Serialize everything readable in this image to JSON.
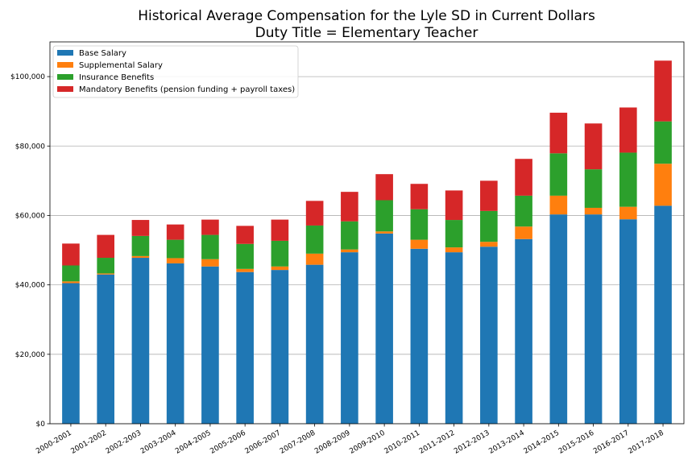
{
  "chart_data": {
    "type": "bar",
    "stacked": true,
    "title": "Historical Average Compensation for the Lyle SD in Current Dollars",
    "subtitle": "Duty Title = Elementary Teacher",
    "xlabel": "",
    "ylabel": "",
    "ylim": [
      0,
      110000
    ],
    "y_ticks": [
      0,
      20000,
      40000,
      60000,
      80000,
      100000
    ],
    "y_tick_labels": [
      "$0",
      "$20,000",
      "$40,000",
      "$60,000",
      "$80,000",
      "$100,000"
    ],
    "grid": "horizontal",
    "legend_position": "top-left",
    "categories": [
      "2000-2001",
      "2001-2002",
      "2002-2003",
      "2003-2004",
      "2004-2005",
      "2005-2006",
      "2006-2007",
      "2007-2008",
      "2008-2009",
      "2009-2010",
      "2010-2011",
      "2011-2012",
      "2012-2013",
      "2013-2014",
      "2014-2015",
      "2015-2016",
      "2016-2017",
      "2017-2018"
    ],
    "series": [
      {
        "name": "Base Salary",
        "color": "#1f77b4",
        "values": [
          40500,
          43000,
          47800,
          46200,
          45300,
          43700,
          44300,
          45800,
          49400,
          54800,
          50400,
          49400,
          51000,
          53200,
          60300,
          60300,
          58900,
          62800
        ]
      },
      {
        "name": "Supplemental Salary",
        "color": "#ff7f0e",
        "values": [
          500,
          300,
          500,
          1500,
          2100,
          900,
          1000,
          3200,
          800,
          600,
          2600,
          1400,
          1400,
          3600,
          5400,
          1900,
          3600,
          12100
        ]
      },
      {
        "name": "Insurance Benefits",
        "color": "#2ca02c",
        "values": [
          4600,
          4500,
          5800,
          5300,
          7000,
          7200,
          7400,
          8100,
          8100,
          9000,
          8800,
          7900,
          8900,
          8900,
          12200,
          11100,
          15600,
          12200
        ]
      },
      {
        "name": "Mandatory Benefits (pension funding + payroll taxes)",
        "color": "#d62728",
        "values": [
          6300,
          6600,
          4600,
          4400,
          4400,
          5200,
          6100,
          7100,
          8500,
          7500,
          7300,
          8500,
          8700,
          10600,
          11700,
          13200,
          13000,
          17500
        ]
      }
    ]
  }
}
